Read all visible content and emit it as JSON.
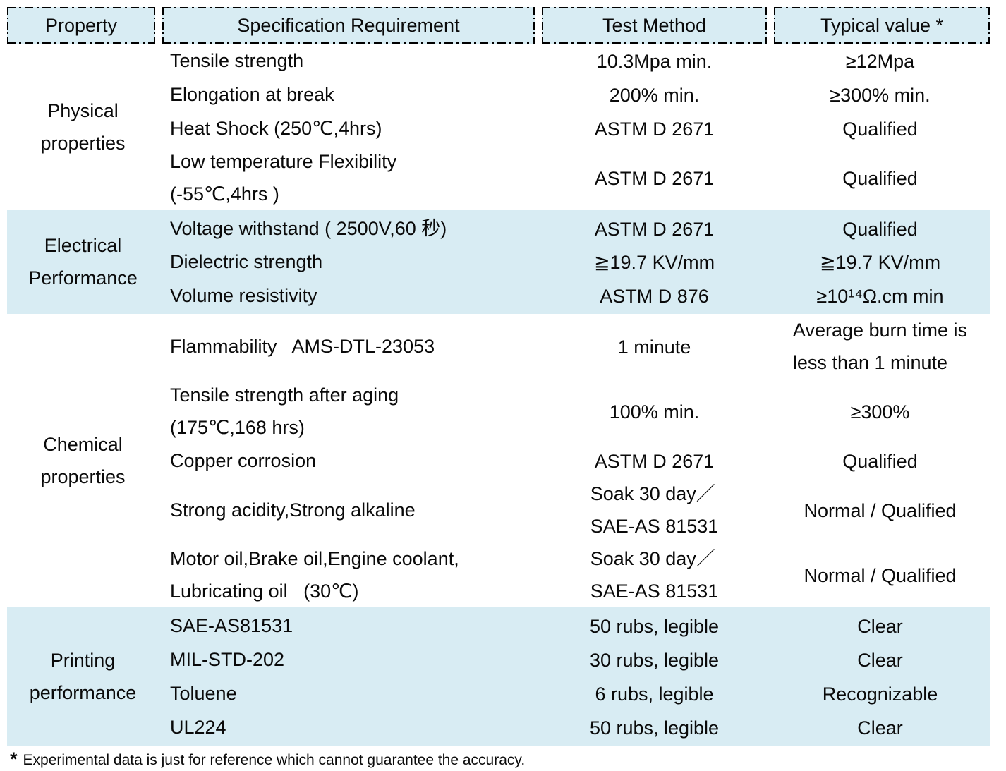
{
  "colors": {
    "highlight_row_bg": "#d8ecf3",
    "text": "#0a0a0a",
    "header_border": "#000000"
  },
  "table": {
    "headers": [
      {
        "id": "property",
        "label": "Property"
      },
      {
        "id": "specification-requirement",
        "label": "Specification Requirement"
      },
      {
        "id": "test-method",
        "label": "Test Method"
      },
      {
        "id": "typical-value",
        "label": "Typical value *"
      }
    ],
    "sections": [
      {
        "id": "physical-properties",
        "label_lines": [
          "Physical",
          "properties"
        ],
        "tone": "white",
        "rows": [
          {
            "spec": [
              "Tensile strength"
            ],
            "method": [
              "10.3Mpa min."
            ],
            "typical": [
              "≥12Mpa"
            ]
          },
          {
            "spec": [
              "Elongation at break"
            ],
            "method": [
              "200% min."
            ],
            "typical": [
              "≥300% min."
            ]
          },
          {
            "spec": [
              "Heat Shock (250℃,4hrs)"
            ],
            "method": [
              "ASTM D 2671"
            ],
            "typical": [
              "Qualified"
            ]
          },
          {
            "spec": [
              "Low temperature Flexibility",
              "(-55℃,4hrs )"
            ],
            "method": [
              "ASTM D 2671"
            ],
            "typical": [
              "Qualified"
            ]
          }
        ]
      },
      {
        "id": "electrical-performance",
        "label_lines": [
          "Electrical",
          "Performance"
        ],
        "tone": "blue",
        "rows": [
          {
            "spec": [
              "Voltage withstand ( 2500V,60 秒)"
            ],
            "method": [
              "ASTM D 2671"
            ],
            "typical": [
              "Qualified"
            ]
          },
          {
            "spec": [
              "Dielectric strength"
            ],
            "method": [
              "≧19.7 KV/mm"
            ],
            "typical": [
              "≧19.7 KV/mm"
            ]
          },
          {
            "spec": [
              "Volume resistivity"
            ],
            "method": [
              "ASTM D 876"
            ],
            "typical": [
              "≥10¹⁴Ω.cm min"
            ]
          }
        ]
      },
      {
        "id": "chemical-properties",
        "label_lines": [
          "Chemical",
          "properties"
        ],
        "tone": "white",
        "rows": [
          {
            "spec": [
              "Flammability   AMS-DTL-23053"
            ],
            "method": [
              "1 minute"
            ],
            "typical": [
              "Average burn time is",
              "less than 1 minute"
            ]
          },
          {
            "spec": [
              "Tensile strength after aging",
              "(175℃,168 hrs)"
            ],
            "method": [
              "100% min."
            ],
            "typical": [
              "≥300%"
            ]
          },
          {
            "spec": [
              "Copper corrosion"
            ],
            "method": [
              "ASTM D 2671"
            ],
            "typical": [
              "Qualified"
            ]
          },
          {
            "spec": [
              "Strong acidity,Strong alkaline"
            ],
            "method": [
              "Soak 30 day／",
              "SAE-AS 81531"
            ],
            "typical": [
              "Normal / Qualified"
            ]
          },
          {
            "spec": [
              "Motor oil,Brake oil,Engine coolant,",
              "Lubricating oil   (30℃)"
            ],
            "method": [
              "Soak 30 day／",
              "SAE-AS 81531"
            ],
            "typical": [
              "Normal / Qualified"
            ]
          }
        ]
      },
      {
        "id": "printing-performance",
        "label_lines": [
          "Printing",
          "performance"
        ],
        "tone": "blue",
        "rows": [
          {
            "spec": [
              "SAE-AS81531"
            ],
            "method": [
              "50 rubs, legible"
            ],
            "typical": [
              "Clear"
            ]
          },
          {
            "spec": [
              "MIL-STD-202"
            ],
            "method": [
              "30 rubs, legible"
            ],
            "typical": [
              "Clear"
            ]
          },
          {
            "spec": [
              "Toluene"
            ],
            "method": [
              "6 rubs, legible"
            ],
            "typical": [
              "Recognizable"
            ]
          },
          {
            "spec": [
              "UL224"
            ],
            "method": [
              "50 rubs, legible"
            ],
            "typical": [
              "Clear"
            ]
          }
        ]
      }
    ],
    "footnote_marker": "*",
    "footnote_text": "Experimental data is just for reference which cannot guarantee the accuracy."
  }
}
